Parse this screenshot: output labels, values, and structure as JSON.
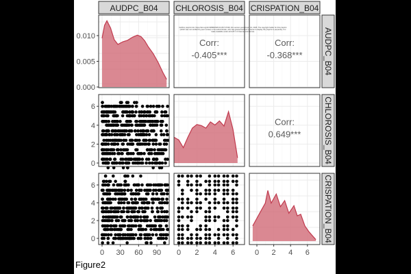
{
  "figure_label": "Figure2",
  "watermark": "bioRxiv preprint doi: https://doi.org/10.64898/2026.04.08.717329; this version posted April 10, 2026. The copyright holder for this preprint (which was not certified by peer review) is the author/funder, who has granted bioRxiv a license to display the preprint in perpetuity. It is made available under aCC-BY 4.0 International license.",
  "chart_data": {
    "type": "scatter",
    "title": "",
    "variables": [
      "AUDPC_B04",
      "CHLOROSIS_B04",
      "CRISPATION_B04"
    ],
    "colors": {
      "density_fill": "#d4737f",
      "density_line": "#c0394d",
      "strip": "#d9d9d9",
      "points": "#000000"
    },
    "correlations": [
      {
        "pair": [
          "AUDPC_B04",
          "CHLOROSIS_B04"
        ],
        "label": "Corr:",
        "value": "-0.405***"
      },
      {
        "pair": [
          "AUDPC_B04",
          "CRISPATION_B04"
        ],
        "label": "Corr:",
        "value": "-0.368***"
      },
      {
        "pair": [
          "CHLOROSIS_B04",
          "CRISPATION_B04"
        ],
        "label": "Corr:",
        "value": "0.649***"
      }
    ],
    "x_ticks": {
      "AUDPC_B04": [
        "0",
        "30",
        "60",
        "90"
      ],
      "CHLOROSIS_B04": [
        "0",
        "2",
        "4",
        "6"
      ],
      "CRISPATION_B04": [
        "0",
        "2",
        "4",
        "6"
      ]
    },
    "y_ticks": {
      "AUDPC_B04": [
        "0.000",
        "0.005",
        "0.010"
      ],
      "CHLOROSIS_B04": [
        "0",
        "2",
        "4",
        "6"
      ],
      "CRISPATION_B04": [
        "0",
        "2",
        "4",
        "6"
      ]
    },
    "densities": {
      "AUDPC_B04": {
        "x": [
          0,
          4,
          8,
          14,
          20,
          26,
          34,
          42,
          50,
          58,
          64,
          70,
          76,
          84,
          92,
          100,
          106
        ],
        "y": [
          0.0095,
          0.012,
          0.0129,
          0.0115,
          0.0092,
          0.0083,
          0.0088,
          0.0091,
          0.0097,
          0.0101,
          0.0098,
          0.009,
          0.0078,
          0.0065,
          0.0048,
          0.0028,
          0.0015
        ]
      },
      "CHLOROSIS_B04": {
        "x": [
          -0.5,
          0,
          0.5,
          1,
          1.5,
          2,
          2.5,
          3,
          3.5,
          4,
          4.5,
          5,
          5.5,
          6,
          6.5
        ],
        "y": [
          0.5,
          0.45,
          0.3,
          0.5,
          0.68,
          0.75,
          0.73,
          0.68,
          0.8,
          0.74,
          0.82,
          0.72,
          1.0,
          0.65,
          0.1
        ]
      },
      "CRISPATION_B04": {
        "x": [
          -0.5,
          0,
          0.5,
          1,
          1.3,
          1.7,
          2.3,
          2.8,
          3.3,
          3.8,
          4.4,
          4.8,
          5.2,
          5.7,
          6.2,
          7
        ],
        "y": [
          0.3,
          0.45,
          0.6,
          0.75,
          1.0,
          0.75,
          0.93,
          0.68,
          0.8,
          0.55,
          0.7,
          0.5,
          0.53,
          0.3,
          0.18,
          0.03
        ]
      }
    },
    "scatter_levels": {
      "CHLOROSIS_B04": [
        -0.5,
        0,
        0.4,
        1,
        1.4,
        2,
        2.4,
        3,
        3.4,
        4,
        4.4,
        5,
        5.4,
        6,
        6.4
      ],
      "CRISPATION_B04": [
        -0.5,
        0,
        0.4,
        1,
        1.4,
        2,
        2.4,
        3,
        3.4,
        4,
        4.4,
        5,
        5.4,
        6,
        6.4,
        7
      ]
    }
  }
}
